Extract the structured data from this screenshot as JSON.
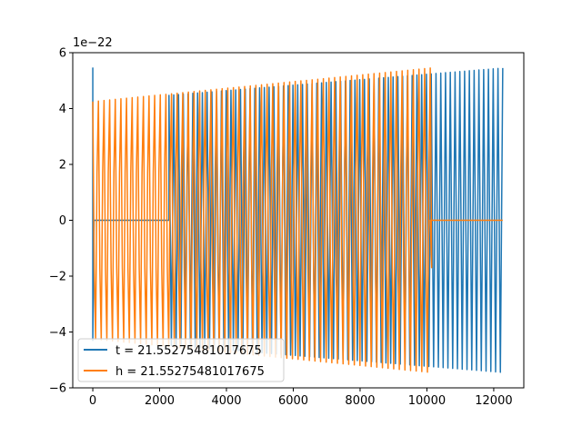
{
  "chart_data": {
    "type": "line",
    "title": "",
    "xlabel": "",
    "ylabel": "",
    "y_offset_label": "1e−22",
    "xlim": [
      -600,
      12900
    ],
    "ylim": [
      -6,
      6
    ],
    "y_unit_scale": 1e-22,
    "x_ticks": [
      0,
      2000,
      4000,
      6000,
      8000,
      10000,
      12000
    ],
    "x_tick_labels": [
      "0",
      "2000",
      "4000",
      "6000",
      "8000",
      "10000",
      "12000"
    ],
    "y_ticks": [
      -6,
      -4,
      -2,
      0,
      2,
      4,
      6
    ],
    "y_tick_labels": [
      "−6",
      "−4",
      "−2",
      "0",
      "2",
      "4",
      "6"
    ],
    "grid": false,
    "legend_position": "lower-left",
    "series": [
      {
        "name": "t = 21.55275481017675",
        "color": "#1f77b4",
        "pattern": "oscillating",
        "x_start": 0,
        "x_end": 12270,
        "cycles": 140,
        "amplitude_start": 4.25,
        "amplitude_end": 5.45,
        "initial_spike": 5.45,
        "flat_ranges": [
          [
            0,
            2280
          ]
        ]
      },
      {
        "name": "h = 21.55275481017675",
        "color": "#ff7f0e",
        "pattern": "oscillating",
        "x_start": 0,
        "x_end": 10100,
        "cycles": 120,
        "amplitude_start": 4.25,
        "amplitude_end": 5.45,
        "inner_band": 1.7,
        "flat_ranges": [
          [
            10100,
            12270
          ]
        ]
      }
    ]
  }
}
